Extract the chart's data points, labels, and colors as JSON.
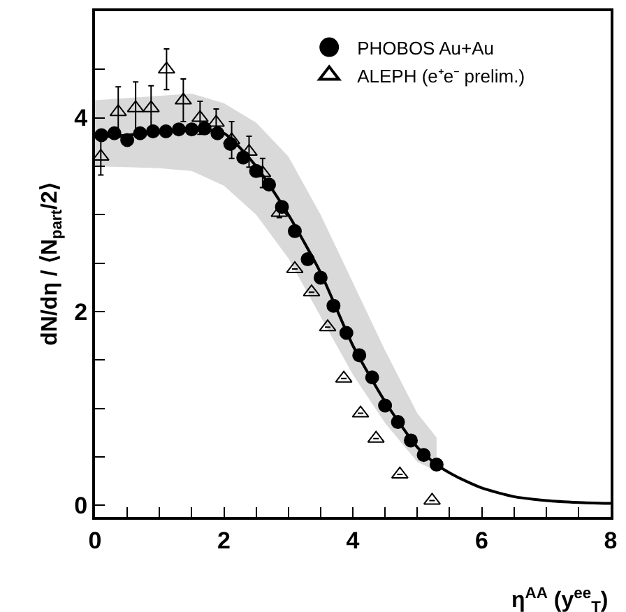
{
  "chart_data": {
    "type": "scatter",
    "xlabel": "η$^{AA}$ (y$^{ee}$$_{T}$)",
    "ylabel": "dN/dη / ⟨N$_{part}$/2⟩",
    "xlim": [
      0,
      8
    ],
    "ylim": [
      -0.12,
      5.1
    ],
    "xticks": [
      0,
      {
        "value": 0.5,
        "label": null
      },
      {
        "value": 1,
        "label": null
      },
      {
        "value": 1.5,
        "label": null
      },
      2,
      {
        "value": 2.5,
        "label": null
      },
      {
        "value": 3,
        "label": null
      },
      {
        "value": 3.5,
        "label": null
      },
      4,
      {
        "value": 4.5,
        "label": null
      },
      {
        "value": 5,
        "label": null
      },
      {
        "value": 5.5,
        "label": null
      },
      6,
      {
        "value": 6.5,
        "label": null
      },
      {
        "value": 7,
        "label": null
      },
      {
        "value": 7.5,
        "label": null
      },
      8
    ],
    "yticks": [
      0,
      {
        "value": 0.5,
        "label": null
      },
      {
        "value": 1,
        "label": null
      },
      {
        "value": 1.5,
        "label": null
      },
      2,
      {
        "value": 2.5,
        "label": null
      },
      {
        "value": 3,
        "label": null
      },
      {
        "value": 3.5,
        "label": null
      },
      4,
      {
        "value": 4.5,
        "label": null
      }
    ],
    "legend": "top right",
    "series": [
      {
        "type": "line",
        "color": "#000000",
        "marker": "none",
        "line_style": "solid",
        "x": [
          0,
          0.5,
          1,
          1.5,
          2,
          2.5,
          3,
          3.5,
          4,
          4.5,
          5,
          5.3,
          5.6,
          6,
          6.5,
          7,
          7.5,
          8
        ],
        "values": [
          3.8,
          3.82,
          3.86,
          3.88,
          3.84,
          3.5,
          3.0,
          2.4,
          1.65,
          1.07,
          0.6,
          0.42,
          0.3,
          0.18,
          0.09,
          0.05,
          0.03,
          0.02
        ],
        "lower": [
          3.5,
          3.49,
          3.48,
          3.45,
          3.3,
          3.0,
          2.55,
          1.95,
          1.35,
          0.85,
          0.45,
          0.35,
          null,
          null,
          null,
          null,
          null,
          null
        ],
        "upper": [
          4.18,
          4.2,
          4.23,
          4.25,
          4.15,
          3.95,
          3.6,
          3.0,
          2.3,
          1.6,
          0.95,
          0.7,
          null,
          null,
          null,
          null,
          null,
          null
        ]
      },
      {
        "name": "PHOBOS Au+Au",
        "color": "#000000",
        "marker": "circle",
        "x": [
          0.1,
          0.3,
          0.5,
          0.7,
          0.9,
          1.1,
          1.3,
          1.5,
          1.7,
          1.9,
          2.1,
          2.3,
          2.5,
          2.7,
          2.9,
          3.1,
          3.3,
          3.5,
          3.7,
          3.9,
          4.1,
          4.3,
          4.5,
          4.7,
          4.9,
          5.1,
          5.3
        ],
        "values": [
          3.82,
          3.84,
          3.77,
          3.84,
          3.86,
          3.86,
          3.88,
          3.88,
          3.89,
          3.84,
          3.73,
          3.59,
          3.45,
          3.31,
          3.08,
          2.83,
          2.54,
          2.35,
          2.06,
          1.78,
          1.55,
          1.32,
          1.03,
          0.86,
          0.67,
          0.52,
          0.42
        ]
      },
      {
        "name": "ALEPH (e⁺e⁻ prelim.)",
        "color": "#000000",
        "marker": "triangle",
        "x": [
          0.09,
          0.36,
          0.63,
          0.87,
          1.11,
          1.37,
          1.63,
          1.88,
          2.12,
          2.39,
          2.6,
          2.86,
          3.1,
          3.36,
          3.61,
          3.86,
          4.12,
          4.36,
          4.73,
          5.23
        ],
        "values": [
          3.6,
          4.06,
          4.1,
          4.1,
          4.5,
          4.18,
          4.0,
          3.95,
          3.77,
          3.65,
          3.43,
          3.02,
          2.44,
          2.2,
          1.84,
          1.31,
          0.95,
          0.69,
          0.32,
          0.05
        ],
        "errors": [
          0.19,
          0.26,
          0.27,
          0.23,
          0.21,
          0.22,
          0.17,
          0.14,
          0.19,
          0.16,
          0.15,
          0.05,
          null,
          null,
          null,
          null,
          null,
          null,
          null,
          null
        ]
      }
    ]
  }
}
